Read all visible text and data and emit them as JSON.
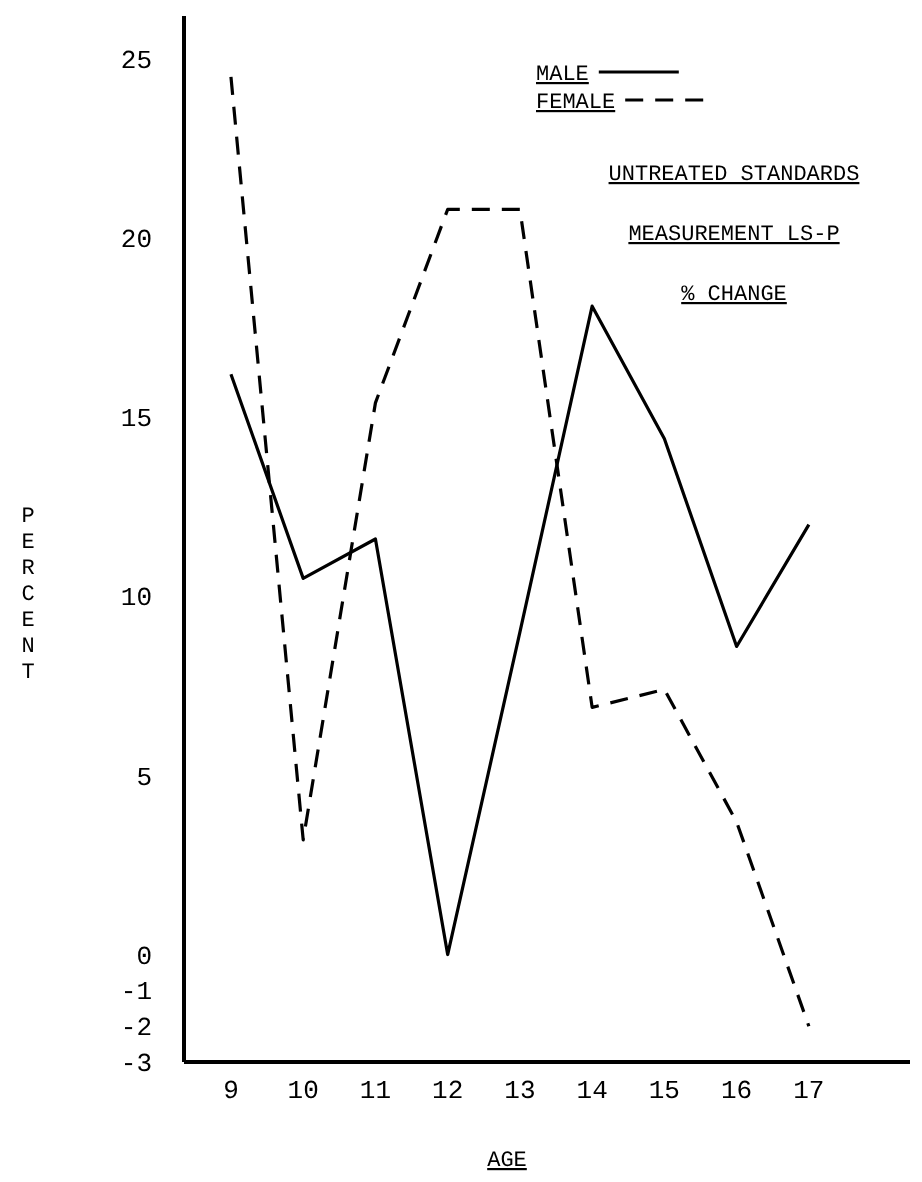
{
  "chart_data": {
    "type": "line",
    "xlabel": "AGE",
    "ylabel": "PERCENT",
    "x": [
      9,
      10,
      11,
      12,
      13,
      14,
      15,
      16,
      17
    ],
    "xlim": [
      8.35,
      18.4
    ],
    "xticks": [
      9,
      10,
      11,
      12,
      13,
      14,
      15,
      16,
      17
    ],
    "ylim": [
      -3,
      26.2
    ],
    "yticks": [
      -3,
      -2,
      -1,
      0,
      5,
      10,
      15,
      20,
      25
    ],
    "series": [
      {
        "name": "MALE",
        "color": "#000000",
        "line_style": "solid",
        "values": [
          16.2,
          10.5,
          11.6,
          0,
          9,
          18.1,
          14.4,
          8.6,
          12.0
        ]
      },
      {
        "name": "FEMALE",
        "color": "#000000",
        "line_style": "dashed",
        "values": [
          24.5,
          3.2,
          15.4,
          20.8,
          20.8,
          6.9,
          7.4,
          3.7,
          -2
        ]
      }
    ],
    "legend": "top right",
    "grid": false,
    "annotations": [
      "UNTREATED STANDARDS",
      "MEASUREMENT LS-P",
      "% CHANGE"
    ]
  }
}
